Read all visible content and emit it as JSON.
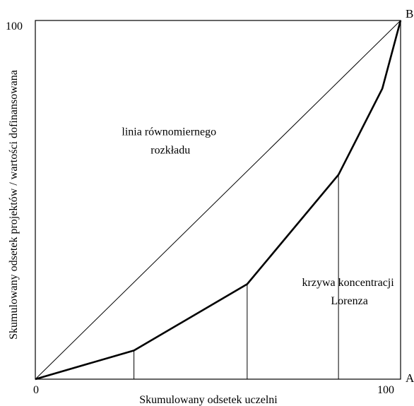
{
  "chart_data": {
    "type": "line",
    "xlabel": "Skumulowany odsetek uczelni",
    "ylabel": "Skumulowany odsetek projektów / wartości dofinansowana",
    "xlim": [
      0,
      100
    ],
    "ylim": [
      0,
      100
    ],
    "x_ticks": [
      "0",
      "100"
    ],
    "y_ticks": [
      "100"
    ],
    "grid": false,
    "series": [
      {
        "name": "linia równomiernego rozkładu",
        "x": [
          0,
          100
        ],
        "y": [
          0,
          100
        ]
      },
      {
        "name": "krzywa koncentracji Lorenza",
        "x": [
          0,
          27,
          58,
          83,
          95,
          100
        ],
        "y": [
          0,
          8,
          26.5,
          57,
          81,
          100
        ]
      }
    ],
    "drop_lines_x": [
      27,
      58,
      83
    ],
    "annotations": [
      {
        "lines": [
          "linia równomiernego",
          "rozkładu"
        ],
        "x": 37,
        "y": 68
      },
      {
        "lines": [
          "krzywa koncentracji",
          "Lorenza"
        ],
        "x": 86,
        "y": 26
      }
    ],
    "corner_labels": {
      "top_right": "B",
      "bottom_right": "A"
    }
  }
}
